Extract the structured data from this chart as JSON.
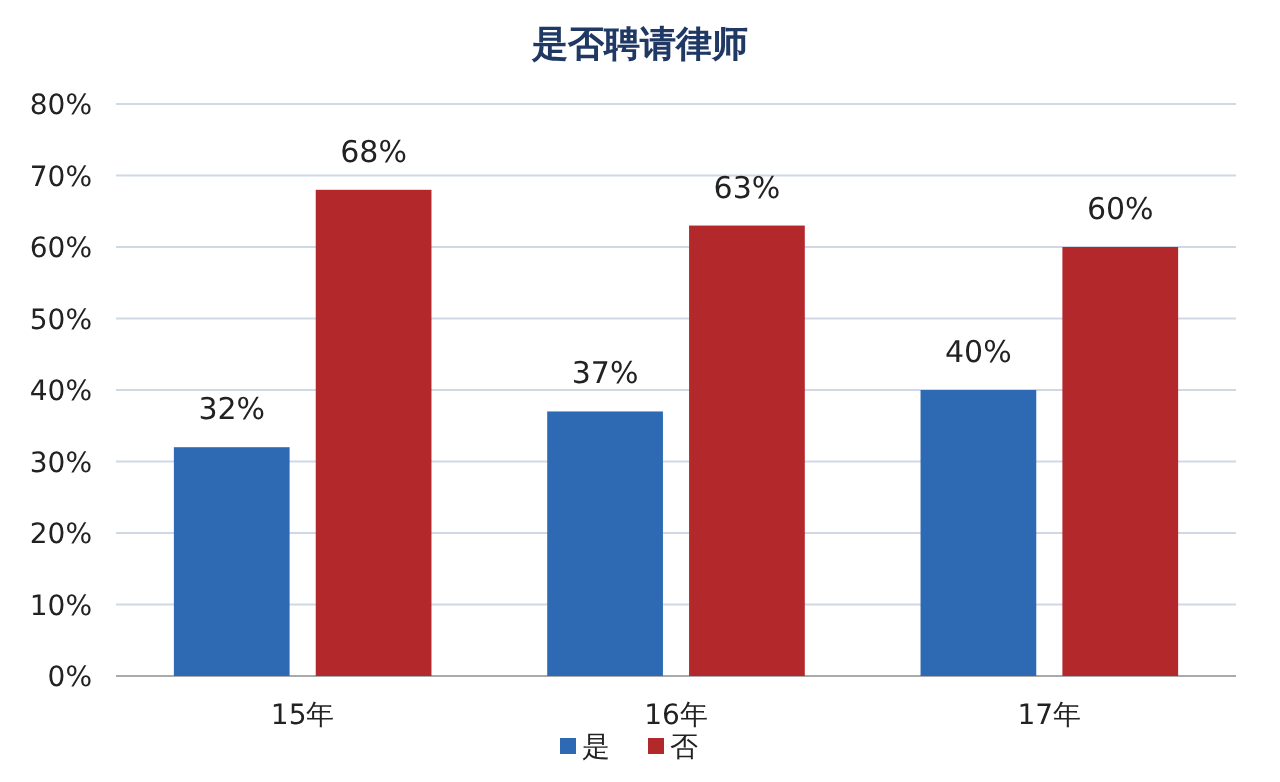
{
  "chart_data": {
    "type": "bar",
    "title": "是否聘请律师",
    "categories": [
      "15年",
      "16年",
      "17年"
    ],
    "series": [
      {
        "name": "是",
        "color": "#2e6ab3",
        "values": [
          32,
          37,
          40
        ],
        "value_labels": [
          "32%",
          "37%",
          "40%"
        ]
      },
      {
        "name": "否",
        "color": "#b3292b",
        "values": [
          68,
          63,
          60
        ],
        "value_labels": [
          "68%",
          "63%",
          "60%"
        ]
      }
    ],
    "ylim": [
      0,
      80
    ],
    "yticks": [
      {
        "value": 0,
        "label": "0%"
      },
      {
        "value": 10,
        "label": "10%"
      },
      {
        "value": 20,
        "label": "20%"
      },
      {
        "value": 30,
        "label": "30%"
      },
      {
        "value": 40,
        "label": "40%"
      },
      {
        "value": 50,
        "label": "50%"
      },
      {
        "value": 60,
        "label": "60%"
      },
      {
        "value": 70,
        "label": "70%"
      },
      {
        "value": 80,
        "label": "80%"
      }
    ],
    "grid": "y",
    "legend": "bottom"
  }
}
